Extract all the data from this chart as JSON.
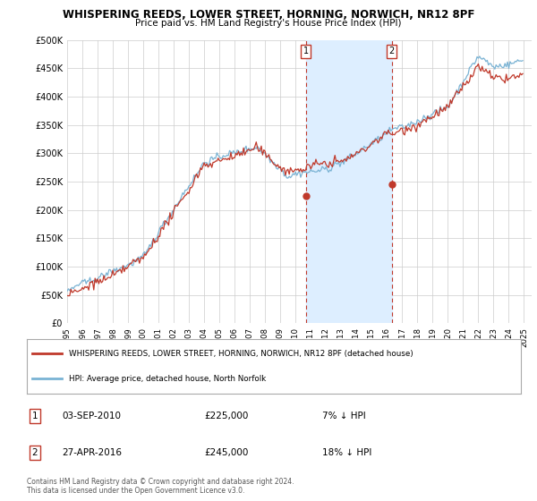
{
  "title": "WHISPERING REEDS, LOWER STREET, HORNING, NORWICH, NR12 8PF",
  "subtitle": "Price paid vs. HM Land Registry's House Price Index (HPI)",
  "ylim": [
    0,
    500000
  ],
  "yticks": [
    0,
    50000,
    100000,
    150000,
    200000,
    250000,
    300000,
    350000,
    400000,
    450000,
    500000
  ],
  "ytick_labels": [
    "£0",
    "£50K",
    "£100K",
    "£150K",
    "£200K",
    "£250K",
    "£300K",
    "£350K",
    "£400K",
    "£450K",
    "£500K"
  ],
  "hpi_color": "#7ab3d4",
  "price_color": "#c0392b",
  "vline_color": "#c0392b",
  "shade_color": "#ddeeff",
  "background_color": "#ffffff",
  "grid_color": "#cccccc",
  "legend_label_red": "WHISPERING REEDS, LOWER STREET, HORNING, NORWICH, NR12 8PF (detached house)",
  "legend_label_blue": "HPI: Average price, detached house, North Norfolk",
  "transaction1_date": "03-SEP-2010",
  "transaction1_price": "£225,000",
  "transaction1_hpi": "7% ↓ HPI",
  "transaction1_year": 2010.67,
  "transaction1_value": 225000,
  "transaction2_date": "27-APR-2016",
  "transaction2_price": "£245,000",
  "transaction2_hpi": "18% ↓ HPI",
  "transaction2_year": 2016.32,
  "transaction2_value": 245000,
  "footer": "Contains HM Land Registry data © Crown copyright and database right 2024.\nThis data is licensed under the Open Government Licence v3.0.",
  "seed": 42
}
